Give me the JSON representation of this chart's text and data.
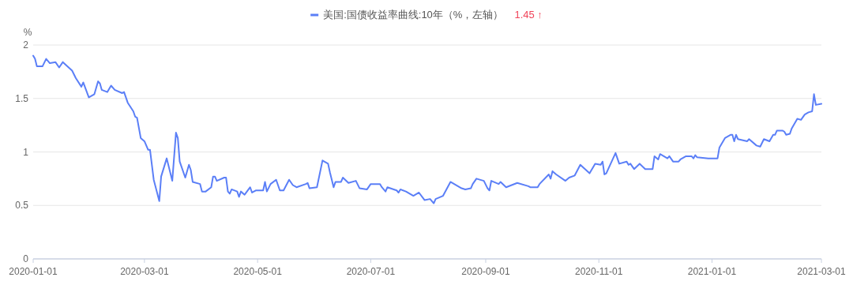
{
  "chart_data": {
    "type": "line",
    "ylabel": "%",
    "annotations": [
      "1.45 ↑"
    ],
    "legend": "top",
    "grid": "y",
    "marker": "none",
    "line_style": "solid",
    "xlim": [
      "2020-01-01",
      "2021-03-01"
    ],
    "xticks": [
      "2020-01-01",
      "2020-03-01",
      "2020-05-01",
      "2020-07-01",
      "2020-09-01",
      "2020-11-01",
      "2021-01-01",
      "2021-03-01"
    ],
    "ylim": [
      0,
      2
    ],
    "yticks": [
      0,
      0.5,
      1,
      1.5,
      2
    ],
    "x": [
      "2020-01-01",
      "2020-01-02",
      "2020-01-03",
      "2020-01-06",
      "2020-01-08",
      "2020-01-10",
      "2020-01-13",
      "2020-01-15",
      "2020-01-17",
      "2020-01-22",
      "2020-01-24",
      "2020-01-27",
      "2020-01-28",
      "2020-01-31",
      "2020-02-03",
      "2020-02-05",
      "2020-02-06",
      "2020-02-07",
      "2020-02-10",
      "2020-02-12",
      "2020-02-14",
      "2020-02-18",
      "2020-02-19",
      "2020-02-21",
      "2020-02-24",
      "2020-02-25",
      "2020-02-26",
      "2020-02-28",
      "2020-03-01",
      "2020-03-03",
      "2020-03-04",
      "2020-03-06",
      "2020-03-09",
      "2020-03-10",
      "2020-03-13",
      "2020-03-16",
      "2020-03-18",
      "2020-03-19",
      "2020-03-20",
      "2020-03-23",
      "2020-03-25",
      "2020-03-26",
      "2020-03-27",
      "2020-03-31",
      "2020-04-01",
      "2020-04-03",
      "2020-04-06",
      "2020-04-07",
      "2020-04-08",
      "2020-04-09",
      "2020-04-13",
      "2020-04-14",
      "2020-04-15",
      "2020-04-16",
      "2020-04-17",
      "2020-04-20",
      "2020-04-21",
      "2020-04-22",
      "2020-04-24",
      "2020-04-27",
      "2020-04-28",
      "2020-04-30",
      "2020-05-04",
      "2020-05-05",
      "2020-05-06",
      "2020-05-08",
      "2020-05-11",
      "2020-05-13",
      "2020-05-15",
      "2020-05-18",
      "2020-05-20",
      "2020-05-22",
      "2020-05-27",
      "2020-05-28",
      "2020-05-29",
      "2020-06-02",
      "2020-06-05",
      "2020-06-08",
      "2020-06-09",
      "2020-06-11",
      "2020-06-12",
      "2020-06-15",
      "2020-06-16",
      "2020-06-19",
      "2020-06-23",
      "2020-06-25",
      "2020-06-29",
      "2020-07-01",
      "2020-07-06",
      "2020-07-07",
      "2020-07-09",
      "2020-07-10",
      "2020-07-15",
      "2020-07-16",
      "2020-07-17",
      "2020-07-20",
      "2020-07-24",
      "2020-07-27",
      "2020-07-30",
      "2020-08-02",
      "2020-08-04",
      "2020-08-05",
      "2020-08-09",
      "2020-08-13",
      "2020-08-17",
      "2020-08-19",
      "2020-08-21",
      "2020-08-24",
      "2020-08-25",
      "2020-08-27",
      "2020-08-31",
      "2020-09-02",
      "2020-09-03",
      "2020-09-04",
      "2020-09-08",
      "2020-09-09",
      "2020-09-12",
      "2020-09-18",
      "2020-09-24",
      "2020-09-25",
      "2020-09-29",
      "2020-09-30",
      "2020-10-05",
      "2020-10-06",
      "2020-10-07",
      "2020-10-09",
      "2020-10-14",
      "2020-10-16",
      "2020-10-19",
      "2020-10-22",
      "2020-10-27",
      "2020-10-30",
      "2020-11-02",
      "2020-11-03",
      "2020-11-04",
      "2020-11-05",
      "2020-11-10",
      "2020-11-12",
      "2020-11-16",
      "2020-11-17",
      "2020-11-18",
      "2020-11-20",
      "2020-11-23",
      "2020-11-26",
      "2020-11-30",
      "2020-12-01",
      "2020-12-03",
      "2020-12-04",
      "2020-12-08",
      "2020-12-09",
      "2020-12-11",
      "2020-12-14",
      "2020-12-15",
      "2020-12-18",
      "2020-12-21",
      "2020-12-22",
      "2020-12-23",
      "2020-12-24",
      "2020-12-30",
      "2021-01-04",
      "2021-01-05",
      "2021-01-08",
      "2021-01-11",
      "2021-01-12",
      "2021-01-13",
      "2021-01-14",
      "2021-01-15",
      "2021-01-20",
      "2021-01-21",
      "2021-01-25",
      "2021-01-27",
      "2021-01-29",
      "2021-02-01",
      "2021-02-03",
      "2021-02-04",
      "2021-02-05",
      "2021-02-08",
      "2021-02-09",
      "2021-02-10",
      "2021-02-12",
      "2021-02-13",
      "2021-02-16",
      "2021-02-18",
      "2021-02-20",
      "2021-02-22",
      "2021-02-24",
      "2021-02-25",
      "2021-02-26",
      "2021-03-01"
    ],
    "series": [
      {
        "name": "美国:国债收益率曲线:10年（%，左轴）",
        "color": "#5b7ff7",
        "values": [
          1.9,
          1.87,
          1.8,
          1.8,
          1.87,
          1.83,
          1.84,
          1.79,
          1.84,
          1.76,
          1.69,
          1.61,
          1.65,
          1.51,
          1.54,
          1.66,
          1.64,
          1.58,
          1.56,
          1.62,
          1.58,
          1.55,
          1.56,
          1.46,
          1.38,
          1.33,
          1.32,
          1.13,
          1.1,
          1.02,
          1.02,
          0.74,
          0.54,
          0.77,
          0.94,
          0.73,
          1.18,
          1.13,
          0.91,
          0.76,
          0.88,
          0.83,
          0.72,
          0.7,
          0.63,
          0.63,
          0.67,
          0.77,
          0.77,
          0.73,
          0.76,
          0.76,
          0.63,
          0.61,
          0.65,
          0.63,
          0.58,
          0.63,
          0.6,
          0.67,
          0.62,
          0.64,
          0.64,
          0.72,
          0.63,
          0.7,
          0.74,
          0.64,
          0.64,
          0.74,
          0.69,
          0.67,
          0.7,
          0.71,
          0.66,
          0.67,
          0.92,
          0.89,
          0.81,
          0.67,
          0.72,
          0.72,
          0.76,
          0.71,
          0.73,
          0.66,
          0.65,
          0.7,
          0.7,
          0.67,
          0.63,
          0.67,
          0.64,
          0.62,
          0.65,
          0.63,
          0.59,
          0.62,
          0.55,
          0.56,
          0.52,
          0.56,
          0.59,
          0.72,
          0.68,
          0.66,
          0.65,
          0.66,
          0.7,
          0.75,
          0.73,
          0.66,
          0.64,
          0.73,
          0.7,
          0.72,
          0.67,
          0.71,
          0.68,
          0.67,
          0.67,
          0.7,
          0.79,
          0.75,
          0.82,
          0.79,
          0.73,
          0.76,
          0.78,
          0.88,
          0.8,
          0.89,
          0.88,
          0.91,
          0.79,
          0.8,
          0.99,
          0.89,
          0.91,
          0.88,
          0.89,
          0.84,
          0.89,
          0.84,
          0.84,
          0.96,
          0.93,
          0.98,
          0.94,
          0.96,
          0.91,
          0.91,
          0.93,
          0.96,
          0.96,
          0.94,
          0.97,
          0.95,
          0.94,
          0.94,
          1.04,
          1.13,
          1.16,
          1.16,
          1.1,
          1.16,
          1.12,
          1.1,
          1.12,
          1.06,
          1.05,
          1.12,
          1.1,
          1.16,
          1.16,
          1.2,
          1.2,
          1.19,
          1.16,
          1.17,
          1.22,
          1.31,
          1.3,
          1.35,
          1.37,
          1.38,
          1.54,
          1.44,
          1.45
        ]
      }
    ]
  }
}
